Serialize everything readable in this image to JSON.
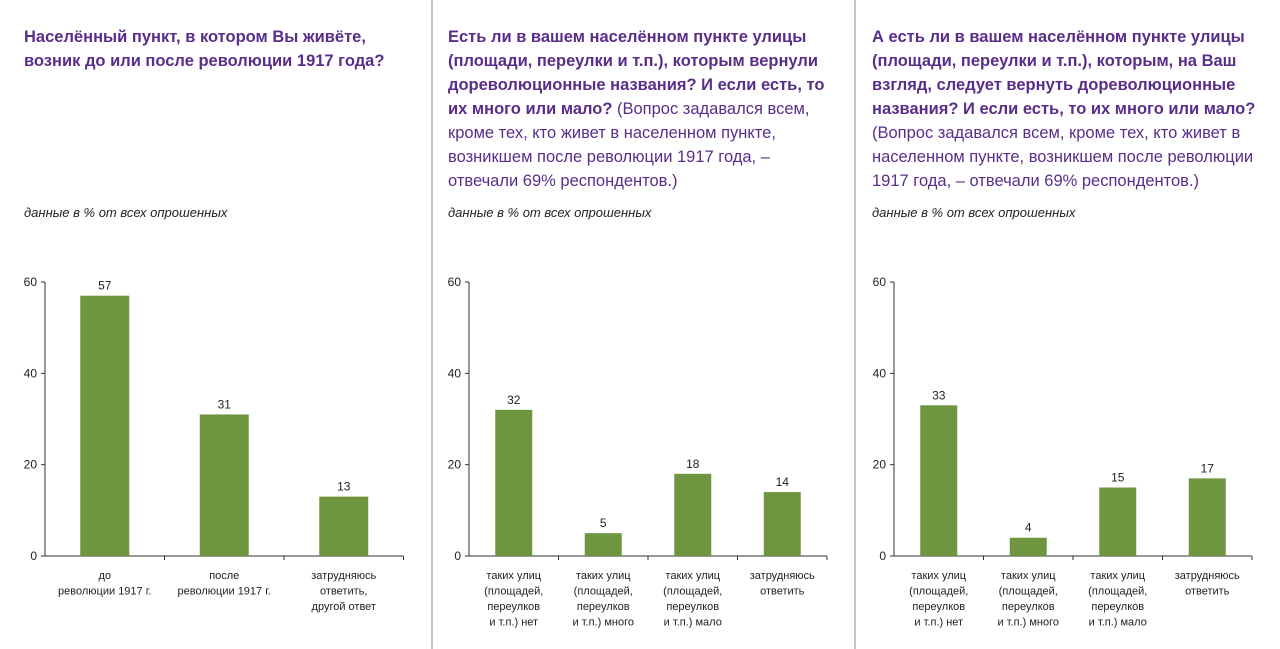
{
  "panels": [
    {
      "question_bold": "Населённый пункт, в котором Вы живёте, возник до или после революции 1917 года?",
      "question_rest": "",
      "subtitle": "данные в % от всех опрошенных"
    },
    {
      "question_bold": "Есть ли в вашем населённом пункте улицы (площади, переулки и т.п.), которым вернули дореволюционные названия? И если есть, то их много или мало?",
      "question_rest": " (Вопрос задавался всем, кроме тех, кто живет в населенном пункте, возникшем после революции 1917 года, – отвечали 69% респондентов.)",
      "subtitle": "данные в % от всех опрошенных"
    },
    {
      "question_bold": "А есть ли в вашем населённом пункте улицы (площади, переулки и т.п.), которым, на Ваш взгляд, следует вернуть дореволюционные названия? И если есть, то их много или мало?",
      "question_rest": " (Вопрос задавался всем, кроме тех, кто живет в населенном пункте, возникшем после революции 1917 года, – отвечали 69% респондентов.)",
      "subtitle": "данные в % от всех опрошенных"
    }
  ],
  "chart_data": [
    {
      "type": "bar",
      "categories": [
        [
          "до",
          "революции 1917 г."
        ],
        [
          "после",
          "революции 1917 г."
        ],
        [
          "затрудняюсь",
          "ответить,",
          "другой ответ"
        ]
      ],
      "values": [
        57,
        31,
        13
      ],
      "ylim": [
        0,
        60
      ],
      "yticks": [
        0,
        20,
        40,
        60
      ],
      "color": "#6f9540"
    },
    {
      "type": "bar",
      "categories": [
        [
          "таких улиц",
          "(площадей,",
          "переулков",
          "и т.п.) нет"
        ],
        [
          "таких улиц",
          "(площадей,",
          "переулков",
          "и т.п.) много"
        ],
        [
          "таких улиц",
          "(площадей,",
          "переулков",
          "и т.п.) мало"
        ],
        [
          "затрудняюсь",
          "ответить"
        ]
      ],
      "values": [
        32,
        5,
        18,
        14
      ],
      "ylim": [
        0,
        60
      ],
      "yticks": [
        0,
        20,
        40,
        60
      ],
      "color": "#6f9540"
    },
    {
      "type": "bar",
      "categories": [
        [
          "таких улиц",
          "(площадей,",
          "переулков",
          "и т.п.) нет"
        ],
        [
          "таких улиц",
          "(площадей,",
          "переулков",
          "и т.п.) много"
        ],
        [
          "таких улиц",
          "(площадей,",
          "переулков",
          "и т.п.) мало"
        ],
        [
          "затрудняюсь",
          "ответить"
        ]
      ],
      "values": [
        33,
        4,
        15,
        17
      ],
      "ylim": [
        0,
        60
      ],
      "yticks": [
        0,
        20,
        40,
        60
      ],
      "color": "#6f9540"
    }
  ]
}
